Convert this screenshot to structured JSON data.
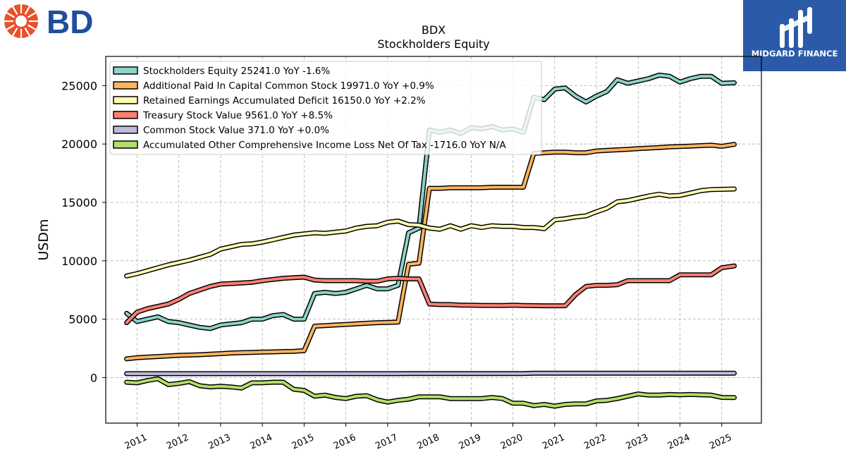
{
  "company_logo": {
    "text": "BD",
    "icon": "bd-starburst-icon",
    "color": "#1f4e9c",
    "icon_color": "#e8512a"
  },
  "publisher_logo": {
    "text": "MIDGARD FINANCE",
    "icon": "midgard-mark-icon",
    "bg_color": "#2b5aa8"
  },
  "chart_data": {
    "type": "line",
    "title": "BDX",
    "subtitle": "Stockholders  Equity",
    "ylabel": "USDm",
    "xlabel": "",
    "ylim": [
      -3900,
      27500
    ],
    "xlim": [
      2010.25,
      2025.95
    ],
    "yticks": [
      0,
      5000,
      10000,
      15000,
      20000,
      25000
    ],
    "xticks": [
      "2011",
      "2012",
      "2013",
      "2014",
      "2015",
      "2016",
      "2017",
      "2018",
      "2019",
      "2020",
      "2021",
      "2022",
      "2023",
      "2024",
      "2025"
    ],
    "grid": true,
    "legend_position": "top-left",
    "x": [
      2010.75,
      2011.0,
      2011.25,
      2011.5,
      2011.75,
      2012.0,
      2012.25,
      2012.5,
      2012.75,
      2013.0,
      2013.25,
      2013.5,
      2013.75,
      2014.0,
      2014.25,
      2014.5,
      2014.75,
      2015.0,
      2015.25,
      2015.5,
      2015.75,
      2016.0,
      2016.25,
      2016.5,
      2016.75,
      2017.0,
      2017.25,
      2017.5,
      2017.75,
      2018.0,
      2018.25,
      2018.5,
      2018.75,
      2019.0,
      2019.25,
      2019.5,
      2019.75,
      2020.0,
      2020.25,
      2020.5,
      2020.75,
      2021.0,
      2021.25,
      2021.5,
      2021.75,
      2022.0,
      2022.25,
      2022.5,
      2022.75,
      2023.0,
      2023.25,
      2023.5,
      2023.75,
      2024.0,
      2024.25,
      2024.5,
      2024.75,
      2025.0,
      2025.3
    ],
    "series": [
      {
        "name": "Stockholders Equity  25241.0 YoY -1.6%",
        "color": "#8dd3c7",
        "values": [
          5500,
          4800,
          5000,
          5200,
          4800,
          4700,
          4500,
          4300,
          4200,
          4500,
          4600,
          4700,
          5000,
          5000,
          5300,
          5400,
          5000,
          5000,
          7200,
          7300,
          7200,
          7300,
          7600,
          7900,
          7600,
          7600,
          7900,
          12400,
          12800,
          21200,
          21000,
          21200,
          20900,
          21400,
          21300,
          21500,
          21200,
          21300,
          21000,
          24000,
          23800,
          24700,
          24800,
          24100,
          23600,
          24100,
          24500,
          25500,
          25200,
          25400,
          25600,
          25900,
          25800,
          25300,
          25600,
          25800,
          25800,
          25200,
          25241
        ]
      },
      {
        "name": "Additional Paid In Capital Common Stock  19971.0 YoY +0.9%",
        "color": "#fdb462",
        "values": [
          1600,
          1700,
          1750,
          1800,
          1850,
          1900,
          1930,
          1960,
          2000,
          2050,
          2100,
          2130,
          2150,
          2180,
          2200,
          2230,
          2250,
          2300,
          4400,
          4450,
          4500,
          4550,
          4600,
          4650,
          4700,
          4720,
          4750,
          9700,
          9800,
          16200,
          16200,
          16250,
          16250,
          16250,
          16250,
          16300,
          16300,
          16300,
          16300,
          19200,
          19250,
          19300,
          19300,
          19250,
          19250,
          19400,
          19450,
          19500,
          19550,
          19600,
          19650,
          19700,
          19750,
          19780,
          19820,
          19860,
          19900,
          19800,
          19971
        ]
      },
      {
        "name": "Retained Earnings Accumulated Deficit  16150.0 YoY +2.2%",
        "color": "#ffffb3",
        "values": [
          8700,
          8900,
          9150,
          9400,
          9650,
          9850,
          10050,
          10300,
          10550,
          11000,
          11200,
          11400,
          11450,
          11600,
          11800,
          12000,
          12200,
          12300,
          12400,
          12350,
          12450,
          12550,
          12800,
          12950,
          13000,
          13300,
          13400,
          13100,
          13050,
          12800,
          12700,
          13000,
          12700,
          13000,
          12850,
          13000,
          12950,
          12950,
          12850,
          12850,
          12750,
          13500,
          13600,
          13750,
          13850,
          14200,
          14500,
          15050,
          15150,
          15350,
          15550,
          15700,
          15550,
          15600,
          15800,
          16000,
          16100,
          16120,
          16150
        ]
      },
      {
        "name": "Treasury Stock Value  9561.0 YoY +8.5%",
        "color": "#fb8072",
        "values": [
          4700,
          5600,
          5900,
          6100,
          6300,
          6700,
          7200,
          7500,
          7800,
          8000,
          8050,
          8100,
          8150,
          8300,
          8400,
          8500,
          8550,
          8600,
          8350,
          8300,
          8300,
          8300,
          8300,
          8250,
          8250,
          8450,
          8500,
          8450,
          8450,
          6300,
          6250,
          6250,
          6200,
          6200,
          6180,
          6180,
          6170,
          6200,
          6170,
          6160,
          6150,
          6150,
          6150,
          7100,
          7800,
          7900,
          7900,
          7950,
          8300,
          8300,
          8300,
          8300,
          8300,
          8800,
          8800,
          8800,
          8800,
          9400,
          9561
        ]
      },
      {
        "name": "Common Stock Value  371.0 YoY +0.0%",
        "color": "#bebada",
        "values": [
          333,
          333,
          333,
          333,
          333,
          333,
          333,
          333,
          333,
          333,
          333,
          333,
          333,
          333,
          333,
          333,
          333,
          333,
          333,
          333,
          333,
          333,
          333,
          333,
          333,
          333,
          333,
          347,
          347,
          347,
          347,
          347,
          347,
          347,
          347,
          347,
          347,
          347,
          347,
          371,
          371,
          371,
          371,
          371,
          371,
          371,
          371,
          371,
          371,
          371,
          371,
          371,
          371,
          371,
          371,
          371,
          371,
          371,
          371
        ]
      },
      {
        "name": "Accumulated Other Comprehensive Income Loss Net Of Tax  -1716.0 YoY N/A",
        "color": "#b3de69",
        "values": [
          -400,
          -450,
          -250,
          -100,
          -600,
          -500,
          -350,
          -700,
          -800,
          -750,
          -800,
          -900,
          -450,
          -450,
          -400,
          -400,
          -1000,
          -1100,
          -1600,
          -1500,
          -1700,
          -1800,
          -1600,
          -1550,
          -1900,
          -2100,
          -1950,
          -1850,
          -1650,
          -1650,
          -1650,
          -1800,
          -1800,
          -1800,
          -1800,
          -1700,
          -1800,
          -2200,
          -2200,
          -2400,
          -2300,
          -2450,
          -2300,
          -2250,
          -2250,
          -2000,
          -1950,
          -1800,
          -1600,
          -1400,
          -1500,
          -1500,
          -1450,
          -1480,
          -1450,
          -1480,
          -1500,
          -1700,
          -1716
        ]
      }
    ]
  }
}
